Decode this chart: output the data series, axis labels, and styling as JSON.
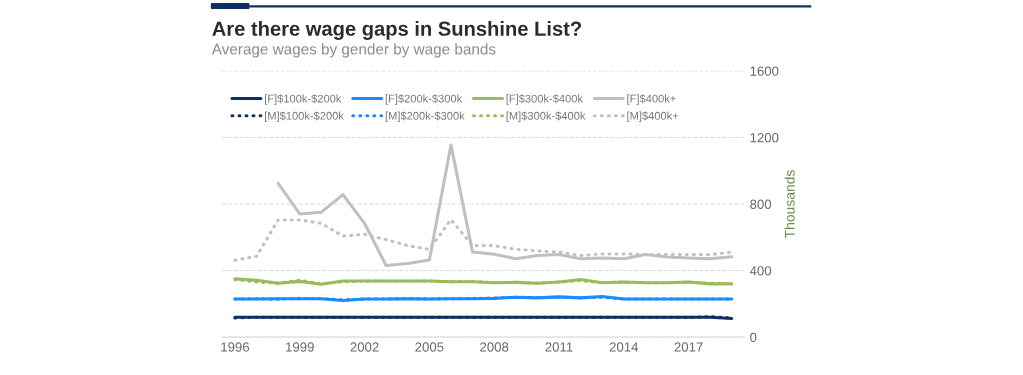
{
  "chart_data": {
    "type": "line",
    "title": "Are there wage gaps in Sunshine List?",
    "subtitle": "Average wages by gender by wage bands",
    "ylabel": "Thousands",
    "x": [
      1996,
      1997,
      1998,
      1999,
      2000,
      2001,
      2002,
      2003,
      2004,
      2005,
      2006,
      2007,
      2008,
      2009,
      2010,
      2011,
      2012,
      2013,
      2014,
      2015,
      2016,
      2017,
      2018,
      2019
    ],
    "xlim": [
      1995.4,
      2019.6
    ],
    "xticks": [
      1996,
      1999,
      2002,
      2005,
      2008,
      2011,
      2014,
      2017
    ],
    "ylim": [
      0,
      1600
    ],
    "yticks": [
      0,
      400,
      800,
      1200,
      1600
    ],
    "grid": "y",
    "legend": "top left",
    "marker": "none",
    "series": [
      {
        "name": "[F]$100k-$200k",
        "color": "#0d2f63",
        "line_style": "solid",
        "values": [
          119,
          119,
          119,
          119,
          119,
          119,
          119,
          119,
          119,
          119,
          119,
          119,
          119,
          119,
          119,
          119,
          119,
          119,
          119,
          119,
          119,
          119,
          119,
          112
        ]
      },
      {
        "name": "[F]$200k-$300k",
        "color": "#1a8cff",
        "line_style": "solid",
        "values": [
          229,
          229,
          231,
          231,
          231,
          220,
          229,
          229,
          231,
          229,
          231,
          231,
          233,
          240,
          236,
          242,
          236,
          244,
          229,
          229,
          229,
          229,
          229,
          229
        ]
      },
      {
        "name": "[F]$300k-$400k",
        "color": "#9bbb59",
        "line_style": "solid",
        "values": [
          350,
          342,
          324,
          335,
          318,
          337,
          337,
          337,
          337,
          337,
          333,
          333,
          327,
          329,
          324,
          331,
          346,
          327,
          331,
          327,
          327,
          331,
          320,
          320
        ]
      },
      {
        "name": "[F]$400k+",
        "color": "#c0c0c0",
        "line_style": "solid",
        "values": [
          null,
          null,
          924,
          740,
          751,
          856,
          684,
          430,
          443,
          464,
          1155,
          511,
          498,
          471,
          490,
          496,
          471,
          475,
          471,
          496,
          481,
          475,
          471,
          483
        ]
      },
      {
        "name": "[M]$100k-$200k",
        "color": "#0d2f63",
        "line_style": "dotted",
        "values": [
          115,
          119,
          119,
          119,
          119,
          119,
          119,
          119,
          119,
          119,
          119,
          119,
          119,
          119,
          119,
          119,
          119,
          119,
          119,
          119,
          119,
          119,
          123,
          115
        ]
      },
      {
        "name": "[M]$200k-$300k",
        "color": "#1a8cff",
        "line_style": "dotted",
        "values": [
          229,
          231,
          227,
          233,
          231,
          224,
          229,
          229,
          233,
          229,
          231,
          233,
          235,
          240,
          238,
          240,
          236,
          240,
          229,
          229,
          229,
          229,
          229,
          229
        ]
      },
      {
        "name": "[M]$300k-$400k",
        "color": "#9bbb59",
        "line_style": "dotted",
        "values": [
          346,
          331,
          324,
          342,
          320,
          333,
          337,
          337,
          337,
          337,
          333,
          335,
          327,
          329,
          324,
          331,
          340,
          327,
          331,
          327,
          327,
          331,
          324,
          322
        ]
      },
      {
        "name": "[M]$400k+",
        "color": "#c0c0c0",
        "line_style": "dotted",
        "values": [
          462,
          486,
          704,
          704,
          684,
          607,
          618,
          586,
          550,
          528,
          706,
          550,
          550,
          528,
          518,
          511,
          490,
          500,
          500,
          496,
          496,
          496,
          496,
          511
        ]
      }
    ]
  }
}
